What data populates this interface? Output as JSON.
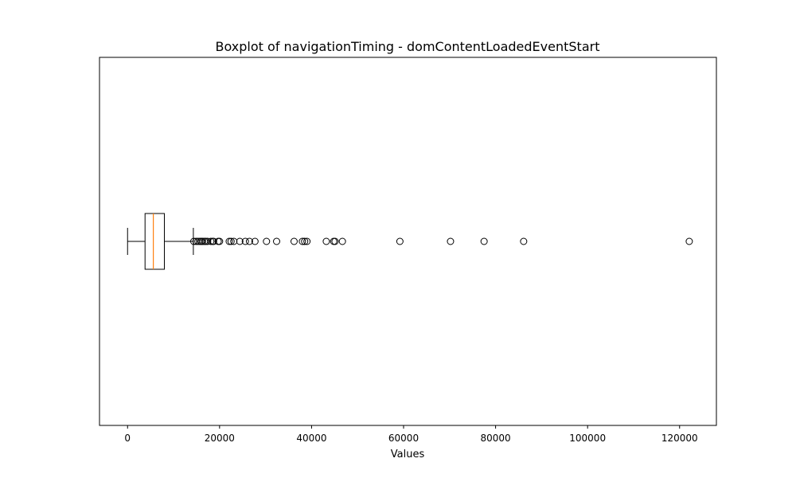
{
  "chart_data": {
    "type": "boxplot",
    "orientation": "horizontal",
    "title": "Boxplot of navigationTiming - domContentLoadedEventStart",
    "xlabel": "Values",
    "ylabel": "",
    "xlim": [
      -6100,
      128000
    ],
    "x_ticks": [
      0,
      20000,
      40000,
      60000,
      80000,
      100000,
      120000
    ],
    "x_tick_labels": [
      "0",
      "20000",
      "40000",
      "60000",
      "80000",
      "100000",
      "120000"
    ],
    "grid": false,
    "legend": "none",
    "box": {
      "whisker_low": 0,
      "q1": 3800,
      "median": 5600,
      "q3": 8000,
      "whisker_high": 14300
    },
    "outliers": [
      14400,
      14900,
      15300,
      15700,
      16000,
      16300,
      16700,
      17000,
      17400,
      18100,
      18500,
      18700,
      19700,
      20000,
      22100,
      22500,
      23100,
      24400,
      25600,
      26500,
      27700,
      30200,
      32400,
      36200,
      38000,
      38500,
      39000,
      43200,
      44800,
      45100,
      46700,
      59200,
      70200,
      77500,
      86100,
      122100
    ],
    "colors": {
      "box": "#000000",
      "median": "#ff7f0e",
      "whisker": "#000000",
      "outlier_edge": "#000000",
      "background": "#ffffff"
    }
  }
}
